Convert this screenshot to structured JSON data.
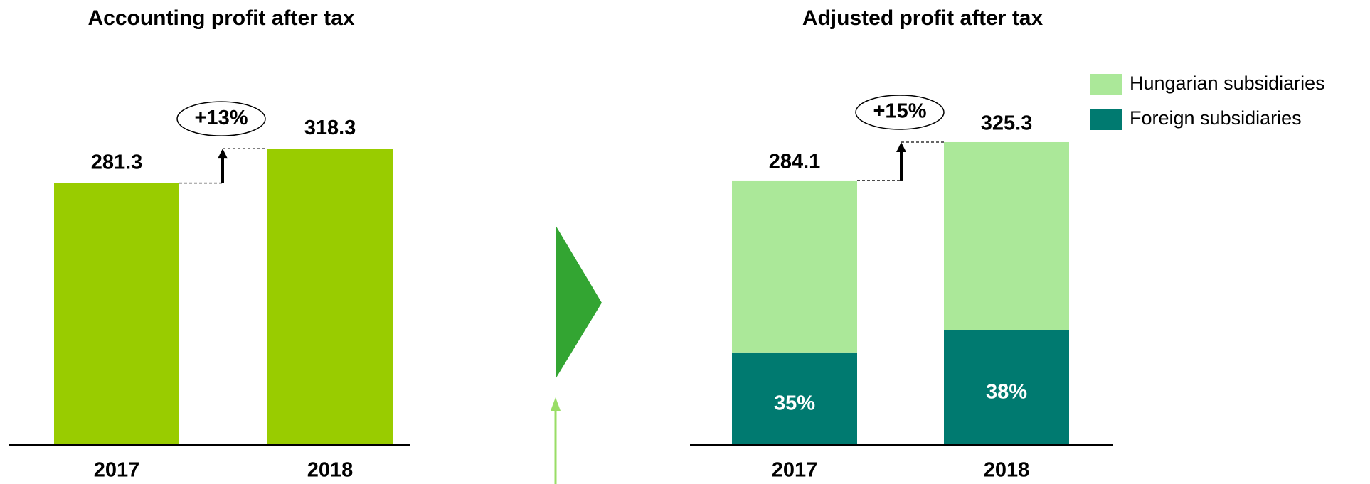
{
  "chart_data": [
    {
      "type": "bar",
      "title": "Accounting profit after tax",
      "categories": [
        "2017",
        "2018"
      ],
      "values": [
        281.3,
        318.3
      ],
      "color": "#99cc00",
      "ylim": [
        0,
        478
      ],
      "annotation": "+13%"
    },
    {
      "type": "stacked_bar",
      "title": "Adjusted profit after tax",
      "categories": [
        "2017",
        "2018"
      ],
      "series": [
        {
          "name": "Foreign subsidiaries",
          "color": "#007a70",
          "values": [
            99.4,
            123.6
          ],
          "share_labels": [
            "35%",
            "38%"
          ]
        },
        {
          "name": "Hungarian subsidiaries",
          "color": "#abe899",
          "values": [
            184.7,
            201.7
          ]
        }
      ],
      "totals": [
        284.1,
        325.3
      ],
      "ylim": [
        0,
        478
      ],
      "annotation": "+15%",
      "legend": "top-right"
    }
  ]
}
